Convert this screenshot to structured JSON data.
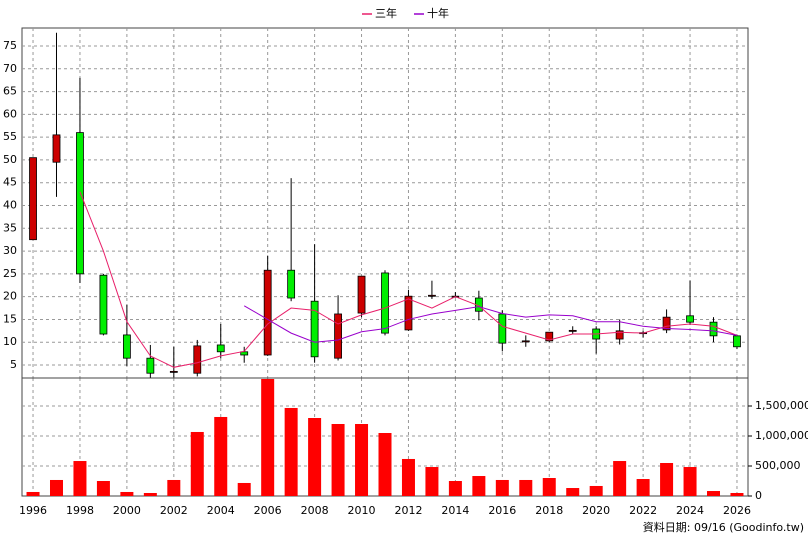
{
  "chart_data": [
    {
      "type": "candlestick",
      "annotation": "資料日期: 09/16 (Goodinfo.tw)",
      "x": [
        1996,
        1997,
        1998,
        1999,
        2000,
        2001,
        2002,
        2003,
        2004,
        2005,
        2006,
        2007,
        2008,
        2009,
        2010,
        2011,
        2012,
        2013,
        2014,
        2015,
        2016,
        2017,
        2018,
        2019,
        2020,
        2021,
        2022,
        2023,
        2024,
        2025,
        2026
      ],
      "open": [
        32.5,
        49.5,
        56,
        24.7,
        11.6,
        6.5,
        3.5,
        3.2,
        9.4,
        7.9,
        7.2,
        25.8,
        19,
        6.5,
        16.4,
        25.2,
        12.7,
        20.2,
        20,
        19.7,
        16.2,
        10.2,
        10.3,
        12.5,
        12.9,
        10.7,
        12,
        12.7,
        15.8,
        14.4,
        11.4
      ],
      "high": [
        50.5,
        77.9,
        68,
        25,
        18.2,
        9.4,
        9,
        10.5,
        14,
        9,
        29,
        46,
        31.5,
        20.3,
        24.5,
        25.8,
        21.5,
        23.5,
        21,
        21.3,
        17,
        11.5,
        12.2,
        13.5,
        13.5,
        15,
        12.5,
        17.2,
        23.5,
        15.5,
        11.5
      ],
      "low": [
        32.5,
        41.9,
        23,
        11.5,
        4.8,
        2.2,
        2.3,
        2.5,
        6.5,
        5.5,
        7,
        19,
        5.5,
        6,
        15.5,
        11.5,
        12.5,
        19.5,
        19.8,
        14.8,
        8,
        9,
        10,
        11.8,
        7.5,
        9.5,
        11,
        12,
        13.8,
        10,
        8.5
      ],
      "close": [
        50.5,
        55.5,
        25,
        11.8,
        6.5,
        3.2,
        3.6,
        9.2,
        7.9,
        7.2,
        25.8,
        19.7,
        6.8,
        16.2,
        24.5,
        12,
        20.1,
        20.3,
        20.1,
        16.8,
        9.8,
        10.3,
        12.2,
        12.6,
        10.7,
        12.5,
        12.1,
        15.5,
        14.4,
        11.4,
        9
      ],
      "up_color": "#cc0000",
      "down_color": "#00ee00",
      "series": [
        {
          "name": "三年",
          "color": "#e8206a",
          "values": [
            null,
            null,
            43,
            30,
            14.5,
            7,
            4.5,
            5.5,
            7,
            8,
            14,
            17.5,
            17,
            14,
            16,
            17.5,
            19.5,
            17.5,
            20,
            18,
            13.5,
            12,
            10.5,
            11.8,
            11.8,
            12.2,
            12,
            13.5,
            14,
            13.5,
            11.5
          ]
        },
        {
          "name": "十年",
          "color": "#9900cc",
          "values": [
            null,
            null,
            null,
            null,
            null,
            null,
            null,
            null,
            null,
            18,
            15,
            12,
            10,
            10.5,
            12.3,
            13,
            15,
            16.2,
            17,
            17.8,
            16.3,
            15.5,
            16,
            15.8,
            14.5,
            14.5,
            13.5,
            13,
            12.8,
            12.5,
            11.5
          ]
        }
      ],
      "xlim": [
        1995.53,
        2026.47
      ],
      "ylim": [
        2.15,
        78.95
      ],
      "yticks": [
        5,
        10,
        15,
        20,
        25,
        30,
        35,
        40,
        45,
        50,
        55,
        60,
        65,
        70,
        75
      ],
      "grid": true
    },
    {
      "type": "bar",
      "x": [
        1996,
        1997,
        1998,
        1999,
        2000,
        2001,
        2002,
        2003,
        2004,
        2005,
        2006,
        2007,
        2008,
        2009,
        2010,
        2011,
        2012,
        2013,
        2014,
        2015,
        2016,
        2017,
        2018,
        2019,
        2020,
        2021,
        2022,
        2023,
        2024,
        2025,
        2026
      ],
      "values": [
        67000,
        267000,
        583000,
        250000,
        67000,
        50000,
        267000,
        1067000,
        1317000,
        217000,
        1950000,
        1467000,
        1300000,
        1200000,
        1200000,
        1050000,
        617000,
        483000,
        250000,
        333000,
        267000,
        267000,
        300000,
        133000,
        167000,
        583000,
        283000,
        550000,
        483000,
        83000,
        50000
      ],
      "color": "#ff0000",
      "xlim": [
        1995.53,
        2026.47
      ],
      "xticks": [
        1996,
        1998,
        2000,
        2002,
        2004,
        2006,
        2008,
        2010,
        2012,
        2014,
        2016,
        2018,
        2020,
        2022,
        2024,
        2026
      ],
      "ylim": [
        0,
        1966667
      ],
      "yticks": [
        0,
        {
          "value": 500000,
          "label": "500,000"
        },
        {
          "value": 1000000,
          "label": "1,000,000"
        },
        {
          "value": 1500000,
          "label": "1,500,000"
        }
      ],
      "grid": true
    }
  ]
}
